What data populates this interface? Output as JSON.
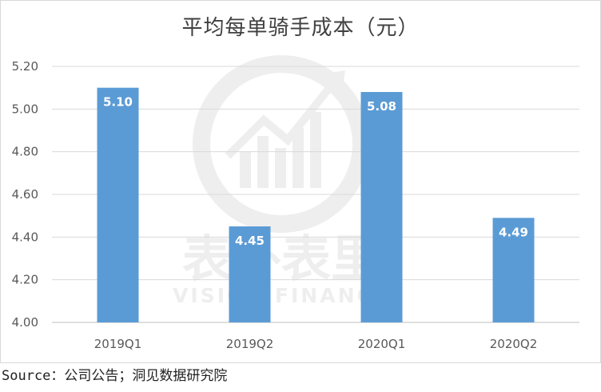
{
  "chart_data": {
    "type": "bar",
    "title": "平均每单骑手成本（元）",
    "categories": [
      "2019Q1",
      "2019Q2",
      "2020Q1",
      "2020Q2"
    ],
    "values": [
      5.1,
      4.45,
      5.08,
      4.49
    ],
    "value_labels": [
      "5.10",
      "4.45",
      "5.08",
      "4.49"
    ],
    "ylim": [
      4.0,
      5.2
    ],
    "yticks": [
      "4.00",
      "4.20",
      "4.40",
      "4.60",
      "4.80",
      "5.00",
      "5.20"
    ],
    "grid": true,
    "bar_color": "#5b9bd5",
    "label_color": "#ffffff"
  },
  "watermark": {
    "cn_text": "表外表里",
    "en_text": "VISION FINANCE"
  },
  "footer": {
    "source": "Source：公司公告；洞见数据研究院"
  }
}
